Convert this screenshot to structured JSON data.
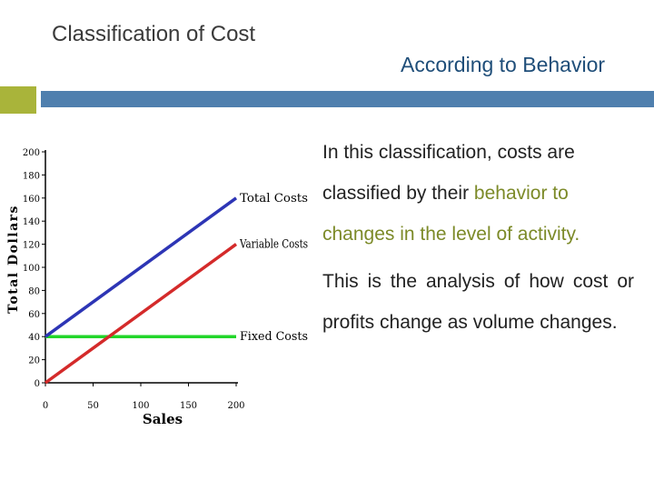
{
  "slide": {
    "title": "Classification of Cost",
    "subtitle": "According to Behavior",
    "colors": {
      "accent_square": "#a9b43a",
      "accent_bar": "#4f7fae",
      "highlight_text": "#7c8a28"
    }
  },
  "body": {
    "para1_part1": "In this classification, costs are classified by their",
    "para1_highlight": "behavior to changes in the level of activity.",
    "para2": "This is the analysis of how cost or profits change as volume changes."
  },
  "chart_data": {
    "type": "line",
    "xlabel": "Sales",
    "ylabel": "Total Dollars",
    "xlim": [
      0,
      200
    ],
    "ylim": [
      0,
      200
    ],
    "x_ticks": [
      "0",
      "50",
      "100",
      "150",
      "200"
    ],
    "y_ticks": [
      "0",
      "20",
      "40",
      "60",
      "80",
      "100",
      "120",
      "140",
      "160",
      "180",
      "200"
    ],
    "series": [
      {
        "name": "Total Costs",
        "color": "#2d35b5",
        "x": [
          0,
          200
        ],
        "values": [
          40,
          160
        ]
      },
      {
        "name": "Variable Costs",
        "color": "#d42a2a",
        "x": [
          0,
          200
        ],
        "values": [
          0,
          120
        ]
      },
      {
        "name": "Fixed Costs",
        "color": "#22d62a",
        "x": [
          0,
          200
        ],
        "values": [
          40,
          40
        ]
      }
    ]
  }
}
